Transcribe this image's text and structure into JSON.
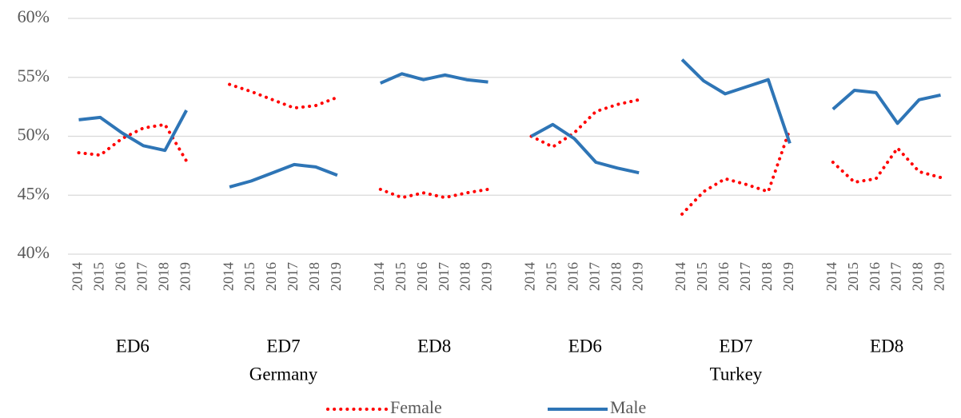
{
  "chart_data": {
    "type": "line",
    "categories": [
      "2014",
      "2015",
      "2016",
      "2017",
      "2018",
      "2019",
      null,
      "2014",
      "2015",
      "2016",
      "2017",
      "2018",
      "2019",
      null,
      "2014",
      "2015",
      "2016",
      "2017",
      "2018",
      "2019",
      null,
      "2014",
      "2015",
      "2016",
      "2017",
      "2018",
      "2019",
      null,
      "2014",
      "2015",
      "2016",
      "2017",
      "2018",
      "2019",
      null,
      "2014",
      "2015",
      "2016",
      "2017",
      "2018",
      "2019"
    ],
    "groups": [
      "ED6",
      "ED7",
      "ED8",
      "ED6",
      "ED7",
      "ED8"
    ],
    "countries": [
      "Germany",
      "Turkey"
    ],
    "series": [
      {
        "name": "Female",
        "color": "#ff0000",
        "dash": "dotted",
        "values": [
          48.6,
          48.4,
          49.8,
          50.7,
          51.0,
          47.9,
          null,
          54.4,
          53.8,
          53.1,
          52.4,
          52.6,
          53.3,
          null,
          45.5,
          44.8,
          45.2,
          44.8,
          45.2,
          45.5,
          null,
          50.0,
          49.1,
          50.3,
          52.1,
          52.7,
          53.1,
          null,
          43.4,
          45.3,
          46.4,
          45.9,
          45.3,
          50.6,
          null,
          47.8,
          46.1,
          46.4,
          49.0,
          47.0,
          46.5
        ]
      },
      {
        "name": "Male",
        "color": "#2e75b6",
        "dash": "solid",
        "values": [
          51.4,
          51.6,
          50.3,
          49.2,
          48.8,
          52.2,
          null,
          45.7,
          46.2,
          46.9,
          47.6,
          47.4,
          46.7,
          null,
          54.5,
          55.3,
          54.8,
          55.2,
          54.8,
          54.6,
          null,
          50.0,
          51.0,
          49.8,
          47.8,
          47.3,
          46.9,
          null,
          56.5,
          54.7,
          53.6,
          54.2,
          54.8,
          49.4,
          null,
          52.3,
          53.9,
          53.7,
          51.1,
          53.1,
          53.5
        ]
      }
    ],
    "ylim": [
      40,
      60
    ],
    "yticks": [
      {
        "value": 40,
        "label": "40%"
      },
      {
        "value": 45,
        "label": "45%"
      },
      {
        "value": 50,
        "label": "50%"
      },
      {
        "value": 55,
        "label": "55%"
      },
      {
        "value": 60,
        "label": "60%"
      }
    ],
    "grid": true,
    "legend": "bottom"
  }
}
